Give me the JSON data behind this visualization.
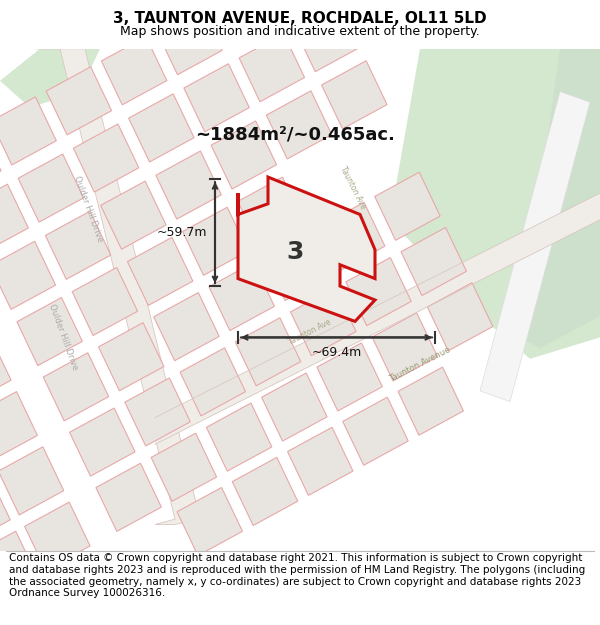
{
  "title": "3, TAUNTON AVENUE, ROCHDALE, OL11 5LD",
  "subtitle": "Map shows position and indicative extent of the property.",
  "footer": "Contains OS data © Crown copyright and database right 2021. This information is subject to Crown copyright and database rights 2023 and is reproduced with the permission of HM Land Registry. The polygons (including the associated geometry, namely x, y co-ordinates) are subject to Crown copyright and database rights 2023 Ordnance Survey 100026316.",
  "area_text": "~1884m²/~0.465ac.",
  "label": "3",
  "dim1_text": "~59.7m",
  "dim2_text": "~69.4m",
  "bg_color": "#edeae5",
  "plot_fill": "#e8e5e0",
  "plot_edge": "#e8a8a8",
  "prop_edge": "#cc1111",
  "prop_fill": "#f0ede8",
  "green_fill": "#d8e8d8",
  "title_fontsize": 11,
  "subtitle_fontsize": 9,
  "footer_fontsize": 7.5
}
